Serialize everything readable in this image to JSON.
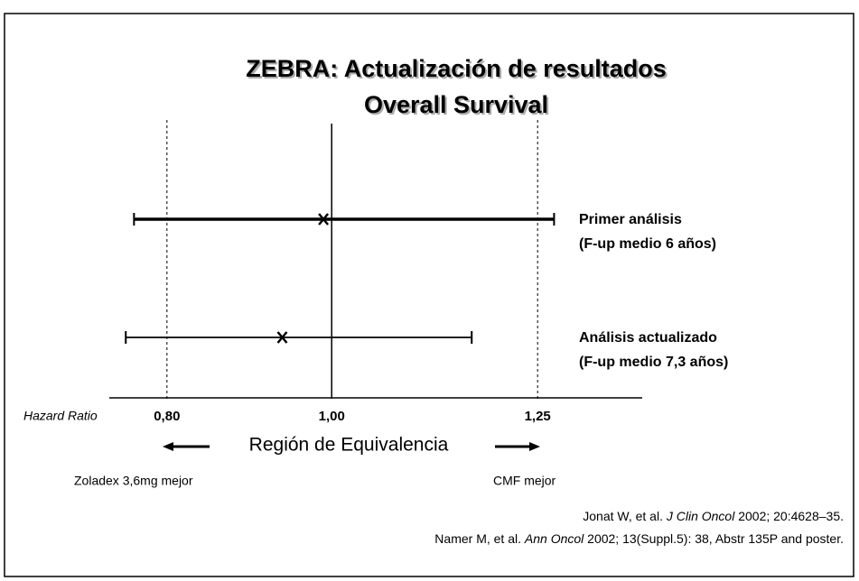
{
  "chart_data": {
    "type": "forest",
    "title": [
      "ZEBRA: Actualización de resultados",
      "Overall Survival"
    ],
    "x_label": "Hazard Ratio",
    "xlim": [
      0.73,
      1.377
    ],
    "xticks": [
      {
        "value": 0.8,
        "label": "0,80"
      },
      {
        "value": 1,
        "label": "1,00"
      },
      {
        "value": 1.25,
        "label": "1,25"
      }
    ],
    "reference_lines": [
      {
        "value": 0.8,
        "dashed": true
      },
      {
        "value": 1,
        "dashed": false
      },
      {
        "value": 1.25,
        "dashed": true
      }
    ],
    "rows": [
      {
        "label": [
          "Primer análisis",
          "(F-up medio 6 años)"
        ],
        "estimate": 0.99,
        "lower": 0.76,
        "upper": 1.27,
        "thick": true
      },
      {
        "label": [
          "Análisis actualizado",
          "(F-up medio 7,3 años)"
        ],
        "estimate": 0.94,
        "lower": 0.75,
        "upper": 1.17,
        "thick": false
      }
    ],
    "color": "#000000",
    "region_label": "Región de Equivalencia",
    "left_label": "Zoladex 3,6mg mejor",
    "right_label": "CMF mejor",
    "references": [
      [
        "Jonat W, et al. ",
        "J Clin Oncol",
        " 2002; 20:4628–35."
      ],
      [
        "Namer M, et al. ",
        "Ann Oncol",
        " 2002; 13(Suppl.5): 38, Abstr 135P and poster."
      ]
    ]
  }
}
